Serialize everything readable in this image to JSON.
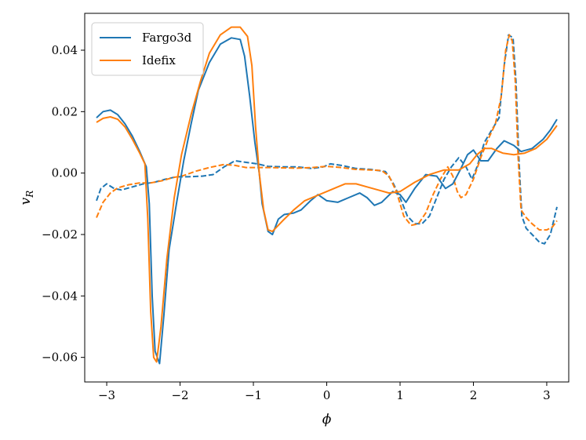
{
  "chart_data": {
    "type": "line",
    "xlabel": "ϕ",
    "ylabel_main": "v",
    "ylabel_sub": "R",
    "xlim": [
      -3.3,
      3.3
    ],
    "ylim": [
      -0.068,
      0.052
    ],
    "xticks": [
      -3,
      -2,
      -1,
      0,
      1,
      2,
      3
    ],
    "xtick_labels": [
      "−3",
      "−2",
      "−1",
      "0",
      "1",
      "2",
      "3"
    ],
    "yticks": [
      -0.06,
      -0.04,
      -0.02,
      0.0,
      0.02,
      0.04
    ],
    "ytick_labels": [
      "−0.06",
      "−0.04",
      "−0.02",
      "0.00",
      "0.02",
      "0.04"
    ],
    "grid": false,
    "legend_position": "top-left",
    "legend": [
      {
        "label": "Fargo3d",
        "color": "#1f77b4"
      },
      {
        "label": "Idefix",
        "color": "#ff7f0e"
      }
    ],
    "series": [
      {
        "name": "Fargo3d",
        "color": "#1f77b4",
        "style": "solid",
        "points": [
          [
            -3.14,
            0.018
          ],
          [
            -3.05,
            0.02
          ],
          [
            -2.95,
            0.0205
          ],
          [
            -2.85,
            0.019
          ],
          [
            -2.75,
            0.016
          ],
          [
            -2.65,
            0.012
          ],
          [
            -2.55,
            0.007
          ],
          [
            -2.46,
            0.002
          ],
          [
            -2.42,
            -0.01
          ],
          [
            -2.38,
            -0.04
          ],
          [
            -2.34,
            -0.058
          ],
          [
            -2.28,
            -0.062
          ],
          [
            -2.22,
            -0.046
          ],
          [
            -2.15,
            -0.025
          ],
          [
            -2.05,
            -0.01
          ],
          [
            -1.95,
            0.004
          ],
          [
            -1.85,
            0.016
          ],
          [
            -1.75,
            0.027
          ],
          [
            -1.6,
            0.036
          ],
          [
            -1.45,
            0.042
          ],
          [
            -1.3,
            0.044
          ],
          [
            -1.18,
            0.0435
          ],
          [
            -1.12,
            0.038
          ],
          [
            -1.05,
            0.025
          ],
          [
            -0.98,
            0.01
          ],
          [
            -0.92,
            0.0
          ],
          [
            -0.88,
            -0.01
          ],
          [
            -0.8,
            -0.019
          ],
          [
            -0.74,
            -0.02
          ],
          [
            -0.66,
            -0.015
          ],
          [
            -0.58,
            -0.0135
          ],
          [
            -0.45,
            -0.013
          ],
          [
            -0.35,
            -0.012
          ],
          [
            -0.22,
            -0.009
          ],
          [
            -0.12,
            -0.007
          ],
          [
            0.0,
            -0.009
          ],
          [
            0.15,
            -0.0095
          ],
          [
            0.3,
            -0.008
          ],
          [
            0.45,
            -0.0065
          ],
          [
            0.55,
            -0.008
          ],
          [
            0.65,
            -0.0105
          ],
          [
            0.75,
            -0.0095
          ],
          [
            0.9,
            -0.006
          ],
          [
            1.0,
            -0.007
          ],
          [
            1.08,
            -0.0095
          ],
          [
            1.2,
            -0.005
          ],
          [
            1.35,
            -0.0005
          ],
          [
            1.5,
            -0.001
          ],
          [
            1.62,
            -0.005
          ],
          [
            1.72,
            -0.0035
          ],
          [
            1.82,
            0.001
          ],
          [
            1.92,
            0.006
          ],
          [
            2.0,
            0.0075
          ],
          [
            2.1,
            0.004
          ],
          [
            2.2,
            0.004
          ],
          [
            2.32,
            0.008
          ],
          [
            2.42,
            0.0105
          ],
          [
            2.55,
            0.009
          ],
          [
            2.65,
            0.007
          ],
          [
            2.8,
            0.008
          ],
          [
            2.95,
            0.011
          ],
          [
            3.05,
            0.014
          ],
          [
            3.14,
            0.0175
          ]
        ]
      },
      {
        "name": "Idefix",
        "color": "#ff7f0e",
        "style": "solid",
        "points": [
          [
            -3.14,
            0.0165
          ],
          [
            -3.05,
            0.0178
          ],
          [
            -2.95,
            0.0183
          ],
          [
            -2.85,
            0.0175
          ],
          [
            -2.75,
            0.015
          ],
          [
            -2.65,
            0.011
          ],
          [
            -2.55,
            0.0065
          ],
          [
            -2.48,
            0.003
          ],
          [
            -2.44,
            -0.015
          ],
          [
            -2.4,
            -0.045
          ],
          [
            -2.36,
            -0.06
          ],
          [
            -2.32,
            -0.0615
          ],
          [
            -2.26,
            -0.05
          ],
          [
            -2.18,
            -0.028
          ],
          [
            -2.08,
            -0.008
          ],
          [
            -1.98,
            0.006
          ],
          [
            -1.85,
            0.019
          ],
          [
            -1.72,
            0.03
          ],
          [
            -1.6,
            0.039
          ],
          [
            -1.45,
            0.045
          ],
          [
            -1.3,
            0.0475
          ],
          [
            -1.18,
            0.0475
          ],
          [
            -1.08,
            0.0445
          ],
          [
            -1.02,
            0.035
          ],
          [
            -0.97,
            0.015
          ],
          [
            -0.92,
            0.0
          ],
          [
            -0.86,
            -0.012
          ],
          [
            -0.8,
            -0.0185
          ],
          [
            -0.74,
            -0.019
          ],
          [
            -0.6,
            -0.0155
          ],
          [
            -0.45,
            -0.012
          ],
          [
            -0.3,
            -0.009
          ],
          [
            -0.15,
            -0.0075
          ],
          [
            0.0,
            -0.006
          ],
          [
            0.15,
            -0.0045
          ],
          [
            0.25,
            -0.0035
          ],
          [
            0.4,
            -0.0035
          ],
          [
            0.55,
            -0.0045
          ],
          [
            0.7,
            -0.0055
          ],
          [
            0.85,
            -0.0065
          ],
          [
            1.0,
            -0.006
          ],
          [
            1.2,
            -0.003
          ],
          [
            1.4,
            -0.0005
          ],
          [
            1.6,
            0.001
          ],
          [
            1.8,
            0.001
          ],
          [
            1.95,
            0.003
          ],
          [
            2.05,
            0.006
          ],
          [
            2.15,
            0.008
          ],
          [
            2.25,
            0.008
          ],
          [
            2.4,
            0.0065
          ],
          [
            2.55,
            0.006
          ],
          [
            2.7,
            0.0065
          ],
          [
            2.85,
            0.008
          ],
          [
            3.0,
            0.011
          ],
          [
            3.14,
            0.0155
          ]
        ]
      },
      {
        "name": "",
        "color": "#1f77b4",
        "style": "dashed",
        "points": [
          [
            -3.14,
            -0.009
          ],
          [
            -3.08,
            -0.005
          ],
          [
            -3.0,
            -0.0035
          ],
          [
            -2.9,
            -0.005
          ],
          [
            -2.8,
            -0.0055
          ],
          [
            -2.65,
            -0.0045
          ],
          [
            -2.5,
            -0.0035
          ],
          [
            -2.35,
            -0.003
          ],
          [
            -2.2,
            -0.002
          ],
          [
            -2.05,
            -0.0012
          ],
          [
            -1.9,
            -0.0012
          ],
          [
            -1.7,
            -0.001
          ],
          [
            -1.55,
            -0.0005
          ],
          [
            -1.4,
            0.002
          ],
          [
            -1.25,
            0.004
          ],
          [
            -1.1,
            0.0035
          ],
          [
            -0.95,
            0.003
          ],
          [
            -0.8,
            0.0022
          ],
          [
            -0.6,
            0.002
          ],
          [
            -0.4,
            0.002
          ],
          [
            -0.2,
            0.0015
          ],
          [
            -0.05,
            0.002
          ],
          [
            0.05,
            0.003
          ],
          [
            0.2,
            0.0025
          ],
          [
            0.4,
            0.0015
          ],
          [
            0.6,
            0.0012
          ],
          [
            0.8,
            0.0005
          ],
          [
            0.9,
            -0.003
          ],
          [
            1.0,
            -0.008
          ],
          [
            1.1,
            -0.014
          ],
          [
            1.2,
            -0.0165
          ],
          [
            1.3,
            -0.0165
          ],
          [
            1.4,
            -0.014
          ],
          [
            1.5,
            -0.008
          ],
          [
            1.6,
            -0.002
          ],
          [
            1.7,
            0.002
          ],
          [
            1.8,
            0.005
          ],
          [
            1.9,
            0.002
          ],
          [
            1.98,
            -0.002
          ],
          [
            2.05,
            0.002
          ],
          [
            2.15,
            0.01
          ],
          [
            2.25,
            0.014
          ],
          [
            2.35,
            0.018
          ],
          [
            2.42,
            0.035
          ],
          [
            2.48,
            0.045
          ],
          [
            2.54,
            0.044
          ],
          [
            2.58,
            0.03
          ],
          [
            2.62,
            0.005
          ],
          [
            2.66,
            -0.014
          ],
          [
            2.72,
            -0.018
          ],
          [
            2.8,
            -0.02
          ],
          [
            2.9,
            -0.0225
          ],
          [
            2.97,
            -0.023
          ],
          [
            3.05,
            -0.02
          ],
          [
            3.14,
            -0.011
          ]
        ]
      },
      {
        "name": "",
        "color": "#ff7f0e",
        "style": "dashed",
        "points": [
          [
            -3.14,
            -0.0145
          ],
          [
            -3.05,
            -0.0095
          ],
          [
            -2.95,
            -0.0065
          ],
          [
            -2.85,
            -0.0048
          ],
          [
            -2.7,
            -0.0038
          ],
          [
            -2.55,
            -0.0032
          ],
          [
            -2.4,
            -0.0032
          ],
          [
            -2.25,
            -0.0025
          ],
          [
            -2.1,
            -0.0015
          ],
          [
            -1.95,
            -0.0008
          ],
          [
            -1.8,
            0.0005
          ],
          [
            -1.6,
            0.0018
          ],
          [
            -1.4,
            0.0028
          ],
          [
            -1.25,
            0.0025
          ],
          [
            -1.1,
            0.0018
          ],
          [
            -0.95,
            0.0018
          ],
          [
            -0.8,
            0.0018
          ],
          [
            -0.6,
            0.0017
          ],
          [
            -0.4,
            0.0016
          ],
          [
            -0.2,
            0.0018
          ],
          [
            0.0,
            0.0022
          ],
          [
            0.2,
            0.0018
          ],
          [
            0.4,
            0.0012
          ],
          [
            0.6,
            0.001
          ],
          [
            0.75,
            0.0008
          ],
          [
            0.85,
            -0.001
          ],
          [
            0.95,
            -0.006
          ],
          [
            1.05,
            -0.014
          ],
          [
            1.15,
            -0.017
          ],
          [
            1.25,
            -0.0165
          ],
          [
            1.35,
            -0.013
          ],
          [
            1.45,
            -0.007
          ],
          [
            1.55,
            -0.002
          ],
          [
            1.65,
            0.002
          ],
          [
            1.72,
            -0.001
          ],
          [
            1.78,
            -0.006
          ],
          [
            1.83,
            -0.008
          ],
          [
            1.9,
            -0.007
          ],
          [
            2.0,
            -0.002
          ],
          [
            2.1,
            0.005
          ],
          [
            2.2,
            0.011
          ],
          [
            2.3,
            0.016
          ],
          [
            2.38,
            0.025
          ],
          [
            2.44,
            0.04
          ],
          [
            2.49,
            0.045
          ],
          [
            2.53,
            0.043
          ],
          [
            2.57,
            0.03
          ],
          [
            2.61,
            0.005
          ],
          [
            2.65,
            -0.012
          ],
          [
            2.72,
            -0.0145
          ],
          [
            2.8,
            -0.0165
          ],
          [
            2.9,
            -0.0185
          ],
          [
            3.0,
            -0.0185
          ],
          [
            3.08,
            -0.0175
          ],
          [
            3.14,
            -0.0155
          ]
        ]
      }
    ]
  }
}
